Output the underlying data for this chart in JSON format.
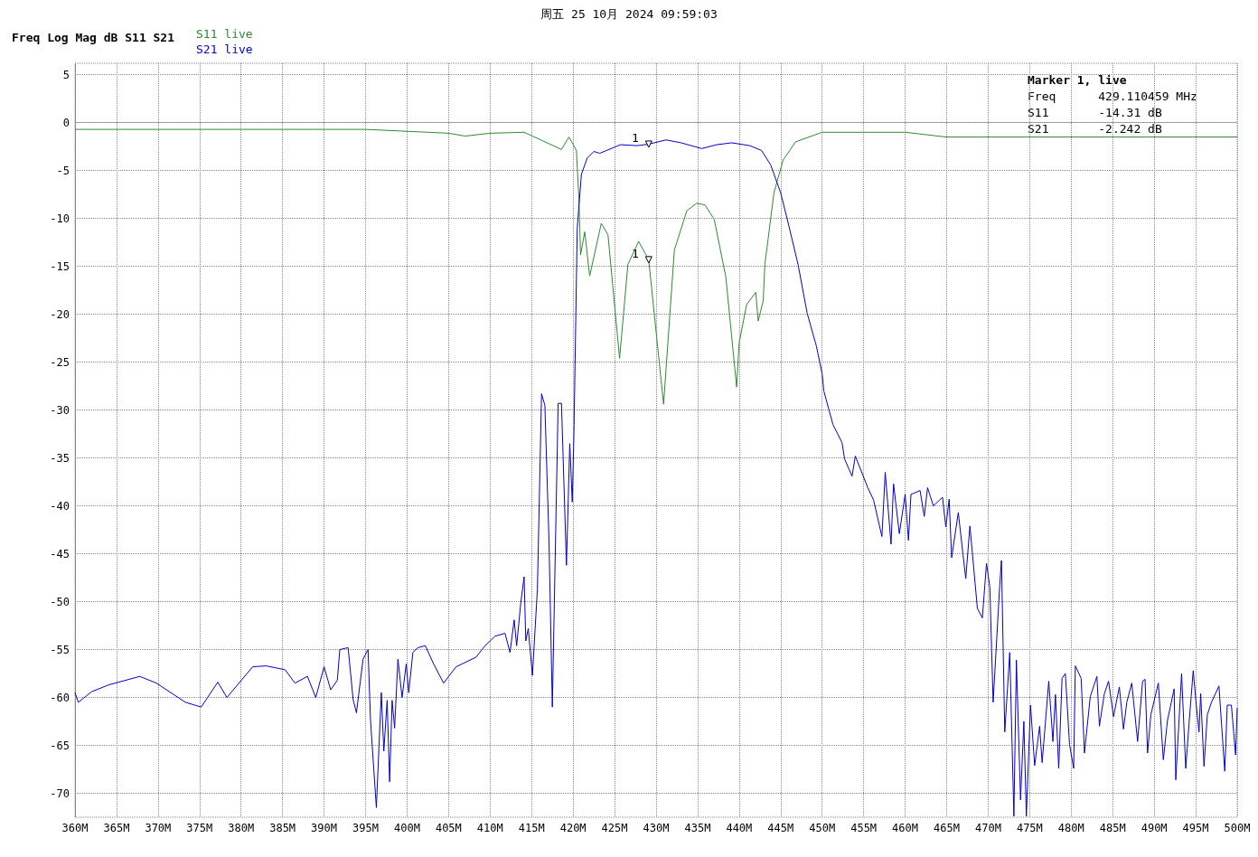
{
  "chart_data": {
    "type": "line",
    "title": "周五 25 10月 2024 09:59:03",
    "subtitle": "Freq Log Mag dB S11 S21",
    "xlim": [
      360,
      500
    ],
    "xticks": [
      {
        "value": 360,
        "label": "360M"
      },
      {
        "value": 365,
        "label": "365M"
      },
      {
        "value": 370,
        "label": "370M"
      },
      {
        "value": 375,
        "label": "375M"
      },
      {
        "value": 380,
        "label": "380M"
      },
      {
        "value": 385,
        "label": "385M"
      },
      {
        "value": 390,
        "label": "390M"
      },
      {
        "value": 395,
        "label": "395M"
      },
      {
        "value": 400,
        "label": "400M"
      },
      {
        "value": 405,
        "label": "405M"
      },
      {
        "value": 410,
        "label": "410M"
      },
      {
        "value": 415,
        "label": "415M"
      },
      {
        "value": 420,
        "label": "420M"
      },
      {
        "value": 425,
        "label": "425M"
      },
      {
        "value": 430,
        "label": "430M"
      },
      {
        "value": 435,
        "label": "435M"
      },
      {
        "value": 440,
        "label": "440M"
      },
      {
        "value": 445,
        "label": "445M"
      },
      {
        "value": 450,
        "label": "450M"
      },
      {
        "value": 455,
        "label": "455M"
      },
      {
        "value": 460,
        "label": "460M"
      },
      {
        "value": 465,
        "label": "465M"
      },
      {
        "value": 470,
        "label": "470M"
      },
      {
        "value": 475,
        "label": "475M"
      },
      {
        "value": 480,
        "label": "480M"
      },
      {
        "value": 485,
        "label": "485M"
      },
      {
        "value": 490,
        "label": "490M"
      },
      {
        "value": 495,
        "label": "495M"
      },
      {
        "value": 500,
        "label": "500M"
      }
    ],
    "ylim": [
      -72.5,
      6.2
    ],
    "yticks": [
      -70,
      -65,
      -60,
      -55,
      -50,
      -45,
      -40,
      -35,
      -30,
      -25,
      -20,
      -15,
      -10,
      -5,
      0,
      5
    ],
    "grid": true,
    "legend": "top left",
    "marker": "none",
    "series": [
      {
        "name": "S11 live",
        "color": "#2e8b2e",
        "x": [
          360,
          380,
          395,
          405,
          407,
          410,
          414.1,
          418.6,
          419.5,
          420.4,
          420.7,
          420.9,
          421.4,
          422.0,
          423.4,
          424.2,
          425.6,
          426.6,
          427.9,
          429.11,
          430.9,
          432.2,
          433.7,
          434.9,
          435.9,
          437.0,
          438.4,
          439.7,
          440.0,
          440.9,
          442.0,
          442.3,
          442.9,
          443.1,
          444.2,
          445.3,
          446.8,
          450.0,
          460,
          465,
          475,
          485,
          500
        ],
        "values": [
          -0.7,
          -0.7,
          -0.7,
          -1.1,
          -1.4,
          -1.1,
          -1.0,
          -2.8,
          -1.5,
          -2.9,
          -7.9,
          -13.8,
          -11.4,
          -16.0,
          -10.5,
          -11.7,
          -24.6,
          -14.8,
          -12.4,
          -14.31,
          -29.4,
          -13.3,
          -9.2,
          -8.4,
          -8.6,
          -10.1,
          -16.1,
          -27.6,
          -23,
          -19,
          -17.7,
          -20.7,
          -18.6,
          -14.8,
          -7.3,
          -3.9,
          -2.0,
          -1.0,
          -1.0,
          -1.5,
          -1.5,
          -1.5,
          -1.5
        ]
      },
      {
        "name": "S21 live",
        "color": "#0000cc",
        "x": [
          360,
          360.4,
          362,
          364,
          367.8,
          369.8,
          373.3,
          375.2,
          377.2,
          378.3,
          381.4,
          383,
          385.3,
          386.5,
          388,
          389,
          390,
          390.8,
          391.6,
          391.9,
          392.9,
          393.5,
          393.9,
          394.7,
          395.3,
          395.6,
          396.3,
          396.9,
          397.2,
          397.6,
          397.9,
          398.2,
          398.5,
          398.9,
          399.4,
          399.9,
          400.2,
          400.7,
          401.3,
          402.2,
          403.2,
          404.4,
          405.9,
          408.3,
          409.4,
          410.6,
          411.8,
          412.4,
          412.9,
          413.2,
          413.7,
          414.1,
          414.3,
          414.6,
          415.1,
          415.7,
          416.2,
          416.6,
          417.1,
          417.5,
          418.2,
          418.6,
          419.2,
          419.6,
          419.9,
          420.1,
          420.5,
          421.0,
          421.7,
          422.5,
          423.2,
          425.7,
          427.7,
          429.11,
          431.2,
          433,
          435.5,
          437.3,
          439.1,
          441.3,
          442.7,
          443.8,
          445,
          446,
          447.1,
          448.2,
          449.3,
          450,
          450.2,
          451.3,
          452.4,
          452.7,
          453.6,
          454.0,
          455.5,
          456.2,
          457.2,
          457.6,
          458.3,
          458.6,
          459.3,
          460.0,
          460.4,
          460.7,
          461.8,
          462.3,
          462.7,
          463.4,
          464.5,
          464.9,
          465.3,
          465.6,
          466.4,
          467.3,
          467.8,
          468.7,
          469.3,
          469.8,
          470.2,
          470.6,
          471.4,
          471.6,
          472.0,
          472.6,
          473.1,
          473.4,
          473.9,
          474.3,
          474.6,
          475.1,
          475.6,
          476.2,
          476.5,
          477.3,
          477.8,
          478.1,
          478.5,
          478.9,
          479.3,
          479.8,
          480.3,
          480.5,
          481.2,
          481.6,
          482.3,
          483.1,
          483.4,
          484.0,
          484.5,
          485.1,
          485.8,
          486.3,
          486.7,
          487.3,
          488.0,
          488.6,
          488.9,
          489.2,
          489.6,
          490.5,
          491.1,
          491.6,
          492.4,
          492.6,
          493.3,
          493.8,
          494.2,
          494.7,
          495.1,
          495.4,
          495.6,
          496.0,
          496.4,
          496.9,
          497.8,
          498.5,
          498.8,
          499.3,
          499.8,
          500
        ],
        "values": [
          -59.5,
          -60.5,
          -59.4,
          -58.7,
          -57.8,
          -58.5,
          -60.5,
          -61,
          -58.4,
          -60,
          -56.8,
          -56.7,
          -57.1,
          -58.5,
          -57.8,
          -60,
          -56.8,
          -59.2,
          -58.2,
          -55,
          -54.8,
          -60.2,
          -61.6,
          -56,
          -55,
          -62.4,
          -71.5,
          -59.5,
          -65.6,
          -60.3,
          -68.8,
          -60.3,
          -63.2,
          -56,
          -60,
          -56.5,
          -59.5,
          -55.3,
          -54.8,
          -54.6,
          -56.5,
          -58.5,
          -56.8,
          -55.8,
          -54.6,
          -53.6,
          -53.3,
          -55.3,
          -51.9,
          -54.6,
          -50.1,
          -47.4,
          -54.1,
          -52.8,
          -57.7,
          -48.7,
          -28.3,
          -29.5,
          -43.7,
          -61,
          -29.3,
          -29.3,
          -46.2,
          -33.5,
          -39.6,
          -32.5,
          -11,
          -5.4,
          -3.7,
          -3.0,
          -3.2,
          -2.3,
          -2.4,
          -2.242,
          -1.8,
          -2.1,
          -2.7,
          -2.3,
          -2.1,
          -2.4,
          -2.9,
          -4.4,
          -7.3,
          -10.8,
          -14.8,
          -19.9,
          -23.3,
          -26.2,
          -28,
          -31.5,
          -33.4,
          -35.1,
          -36.9,
          -34.8,
          -38.1,
          -39.4,
          -43.2,
          -36.5,
          -44,
          -37.7,
          -42.9,
          -38.8,
          -43.6,
          -38.8,
          -38.4,
          -41.1,
          -38.1,
          -40,
          -39.1,
          -42.2,
          -39.3,
          -45.4,
          -40.7,
          -47.6,
          -42.1,
          -50.7,
          -51.7,
          -46,
          -48.5,
          -60.5,
          -48.2,
          -45.7,
          -63.6,
          -55.3,
          -72.4,
          -56.1,
          -70.7,
          -62.5,
          -72.4,
          -60.8,
          -67.1,
          -63,
          -66.8,
          -58.3,
          -64.6,
          -59.7,
          -67.4,
          -58,
          -57.5,
          -64.9,
          -67.4,
          -56.7,
          -58,
          -65.8,
          -59.9,
          -57.8,
          -63,
          -59.6,
          -58.3,
          -62,
          -58.9,
          -63.3,
          -60.5,
          -58.5,
          -64.6,
          -58.3,
          -58.1,
          -65.8,
          -61.8,
          -58.5,
          -66.5,
          -62.4,
          -59.1,
          -68.6,
          -57.5,
          -67.4,
          -62.7,
          -57.2,
          -61.1,
          -63.6,
          -59.6,
          -67.2,
          -61.8,
          -60.5,
          -58.8,
          -67.7,
          -60.8,
          -60.8,
          -66,
          -61.1
        ]
      }
    ],
    "annotations": [
      "Marker 1, live",
      "Freq      429.110459 MHz",
      "S11       -14.31 dB",
      "S21       -2.242 dB",
      {
        "text": "1",
        "x": 429.11,
        "y": -14.31
      },
      {
        "text": "1",
        "x": 429.11,
        "y": -2.242
      }
    ]
  }
}
